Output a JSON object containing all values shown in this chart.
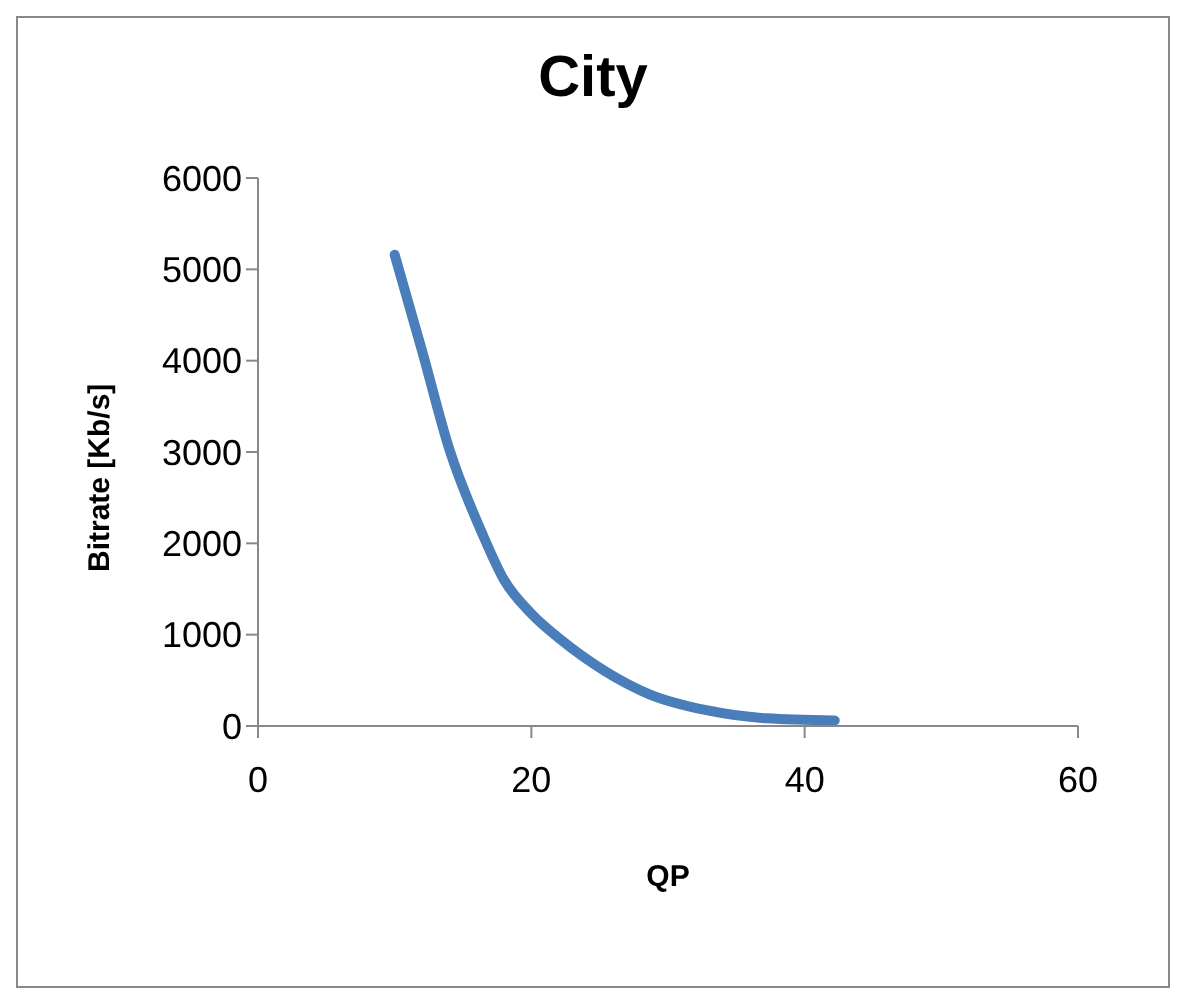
{
  "chart_data": {
    "type": "line",
    "title": "City",
    "xlabel": "QP",
    "ylabel": "Bitrate [Kb/s]",
    "x": [
      10,
      12,
      14,
      16.4,
      18,
      20,
      22.2,
      25.4,
      28.6,
      32.9,
      37.2,
      42.2
    ],
    "series": [
      {
        "color": "#4a7ebb",
        "values": [
          5160,
          4110,
          3030,
          2110,
          1600,
          1230,
          940,
          600,
          350,
          170,
          84,
          60
        ]
      }
    ],
    "xlim": [
      0,
      60
    ],
    "xticks": [
      0,
      20,
      40,
      60
    ],
    "ylim": [
      0,
      6000
    ],
    "yticks": [
      0,
      1000,
      2000,
      3000,
      4000,
      5000,
      6000
    ],
    "grid": false,
    "legend": false,
    "marker": "none",
    "line_style": "solid"
  }
}
